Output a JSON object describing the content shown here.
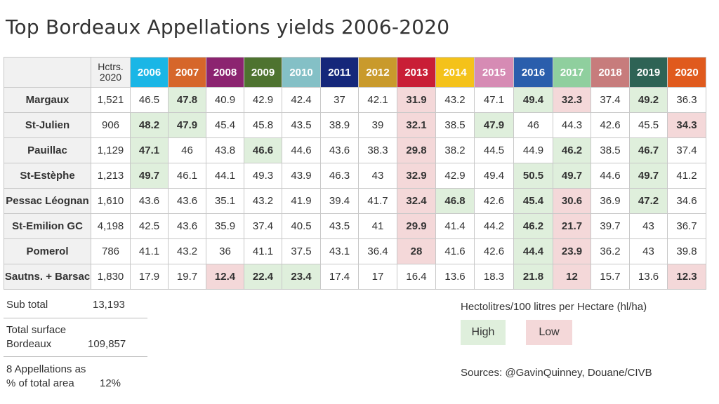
{
  "title": "Top Bordeaux Appellations yields 2006-2020",
  "chart_data": {
    "type": "table",
    "title": "Top Bordeaux Appellations yields 2006-2020",
    "hctrs_header": [
      "Hctrs.",
      "2020"
    ],
    "years": [
      {
        "label": "2006",
        "color": "#1ab6e6"
      },
      {
        "label": "2007",
        "color": "#d6662a"
      },
      {
        "label": "2008",
        "color": "#8c2470"
      },
      {
        "label": "2009",
        "color": "#4e7330"
      },
      {
        "label": "2010",
        "color": "#84c0c6"
      },
      {
        "label": "2011",
        "color": "#15277a"
      },
      {
        "label": "2012",
        "color": "#c99a2c"
      },
      {
        "label": "2013",
        "color": "#c91e36"
      },
      {
        "label": "2014",
        "color": "#f4c21a"
      },
      {
        "label": "2015",
        "color": "#d68bb4"
      },
      {
        "label": "2016",
        "color": "#2a5eac"
      },
      {
        "label": "2017",
        "color": "#8fcf9e"
      },
      {
        "label": "2018",
        "color": "#c77c7c"
      },
      {
        "label": "2019",
        "color": "#2e6355"
      },
      {
        "label": "2020",
        "color": "#e05a1d"
      }
    ],
    "rows": [
      {
        "name": "Margaux",
        "hctrs": "1,521",
        "values": [
          "46.5",
          "47.8",
          "40.9",
          "42.9",
          "42.4",
          "37",
          "42.1",
          "31.9",
          "43.2",
          "47.1",
          "49.4",
          "32.3",
          "37.4",
          "49.2",
          "36.3"
        ],
        "marks": [
          "",
          "high",
          "",
          "",
          "",
          "",
          "",
          "low",
          "",
          "",
          "high",
          "low",
          "",
          "high",
          ""
        ]
      },
      {
        "name": "St-Julien",
        "hctrs": "906",
        "values": [
          "48.2",
          "47.9",
          "45.4",
          "45.8",
          "43.5",
          "38.9",
          "39",
          "32.1",
          "38.5",
          "47.9",
          "46",
          "44.3",
          "42.6",
          "45.5",
          "34.3"
        ],
        "marks": [
          "high",
          "high",
          "",
          "",
          "",
          "",
          "",
          "low",
          "",
          "high",
          "",
          "",
          "",
          "",
          "low"
        ]
      },
      {
        "name": "Pauillac",
        "hctrs": "1,129",
        "values": [
          "47.1",
          "46",
          "43.8",
          "46.6",
          "44.6",
          "43.6",
          "38.3",
          "29.8",
          "38.2",
          "44.5",
          "44.9",
          "46.2",
          "38.5",
          "46.7",
          "37.4"
        ],
        "marks": [
          "high",
          "",
          "",
          "high",
          "",
          "",
          "",
          "low",
          "",
          "",
          "",
          "high",
          "",
          "high",
          ""
        ]
      },
      {
        "name": "St-Estèphe",
        "hctrs": "1,213",
        "values": [
          "49.7",
          "46.1",
          "44.1",
          "49.3",
          "43.9",
          "46.3",
          "43",
          "32.9",
          "42.9",
          "49.4",
          "50.5",
          "49.7",
          "44.6",
          "49.7",
          "41.2"
        ],
        "marks": [
          "high",
          "",
          "",
          "",
          "",
          "",
          "",
          "low",
          "",
          "",
          "high",
          "high",
          "",
          "high",
          ""
        ]
      },
      {
        "name": "Pessac Léognan",
        "hctrs": "1,610",
        "values": [
          "43.6",
          "43.6",
          "35.1",
          "43.2",
          "41.9",
          "39.4",
          "41.7",
          "32.4",
          "46.8",
          "42.6",
          "45.4",
          "30.6",
          "36.9",
          "47.2",
          "34.6"
        ],
        "marks": [
          "",
          "",
          "",
          "",
          "",
          "",
          "",
          "low",
          "high",
          "",
          "high",
          "low",
          "",
          "high",
          ""
        ]
      },
      {
        "name": "St-Emilion GC",
        "hctrs": "4,198",
        "values": [
          "42.5",
          "43.6",
          "35.9",
          "37.4",
          "40.5",
          "43.5",
          "41",
          "29.9",
          "41.4",
          "44.2",
          "46.2",
          "21.7",
          "39.7",
          "43",
          "36.7"
        ],
        "marks": [
          "",
          "",
          "",
          "",
          "",
          "",
          "",
          "low",
          "",
          "",
          "high",
          "low",
          "",
          "",
          ""
        ]
      },
      {
        "name": "Pomerol",
        "hctrs": "786",
        "values": [
          "41.1",
          "43.2",
          "36",
          "41.1",
          "37.5",
          "43.1",
          "36.4",
          "28",
          "41.6",
          "42.6",
          "44.4",
          "23.9",
          "36.2",
          "43",
          "39.8"
        ],
        "marks": [
          "",
          "",
          "",
          "",
          "",
          "",
          "",
          "low",
          "",
          "",
          "high",
          "low",
          "",
          "",
          ""
        ]
      },
      {
        "name": "Sautns. + Barsac",
        "hctrs": "1,830",
        "values": [
          "17.9",
          "19.7",
          "12.4",
          "22.4",
          "23.4",
          "17.4",
          "17",
          "16.4",
          "13.6",
          "18.3",
          "21.8",
          "12",
          "15.7",
          "13.6",
          "12.3"
        ],
        "marks": [
          "",
          "",
          "low",
          "high",
          "high",
          "",
          "",
          "",
          "",
          "",
          "high",
          "low",
          "",
          "",
          "low"
        ]
      }
    ],
    "colors": {
      "high": "#dfefdc",
      "low": "#f4d8d9",
      "label_bg": "#f1f1f1"
    }
  },
  "summary": {
    "subtotal_label": "Sub total",
    "subtotal_value": "13,193",
    "total_label_1": "Total surface",
    "total_label_2": "Bordeaux",
    "total_value": "109,857",
    "pct_label_1": "8 Appellations as",
    "pct_label_2": "% of total area",
    "pct_value": "12%"
  },
  "legend": {
    "title": "Hectolitres/100 litres per Hectare (hl/ha)",
    "high_label": "High",
    "low_label": "Low"
  },
  "sources": "Sources: @GavinQuinney, Douane/CIVB"
}
